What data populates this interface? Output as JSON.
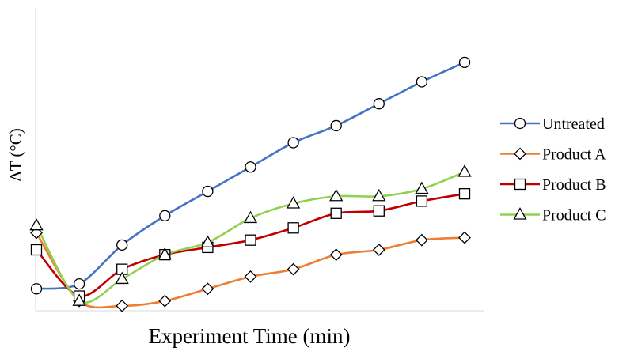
{
  "chart_data": {
    "type": "line",
    "title": "",
    "xlabel": "Experiment Time (min)",
    "ylabel": "ΔT (°C)",
    "x": [
      0,
      1,
      2,
      3,
      4,
      5,
      6,
      7,
      8,
      9,
      10
    ],
    "ylim": [
      0,
      100
    ],
    "grid": false,
    "legend": "right",
    "series": [
      {
        "name": "Untreated",
        "color": "#4472C4",
        "marker": "circle",
        "values": [
          9,
          11,
          27,
          39,
          49,
          59,
          69,
          76,
          85,
          94,
          102
        ]
      },
      {
        "name": "Product A",
        "color": "#ED7D31",
        "marker": "diamond",
        "values": [
          32,
          4,
          2,
          4,
          9,
          14,
          17,
          23,
          25,
          29,
          30
        ]
      },
      {
        "name": "Product B",
        "color": "#C00000",
        "marker": "square",
        "values": [
          25,
          6,
          17,
          23,
          26,
          29,
          34,
          40,
          41,
          45,
          48
        ]
      },
      {
        "name": "Product C",
        "color": "#92D050",
        "marker": "triangle",
        "values": [
          35,
          4,
          13,
          23,
          28,
          38,
          44,
          47,
          47,
          50,
          57
        ]
      }
    ]
  }
}
